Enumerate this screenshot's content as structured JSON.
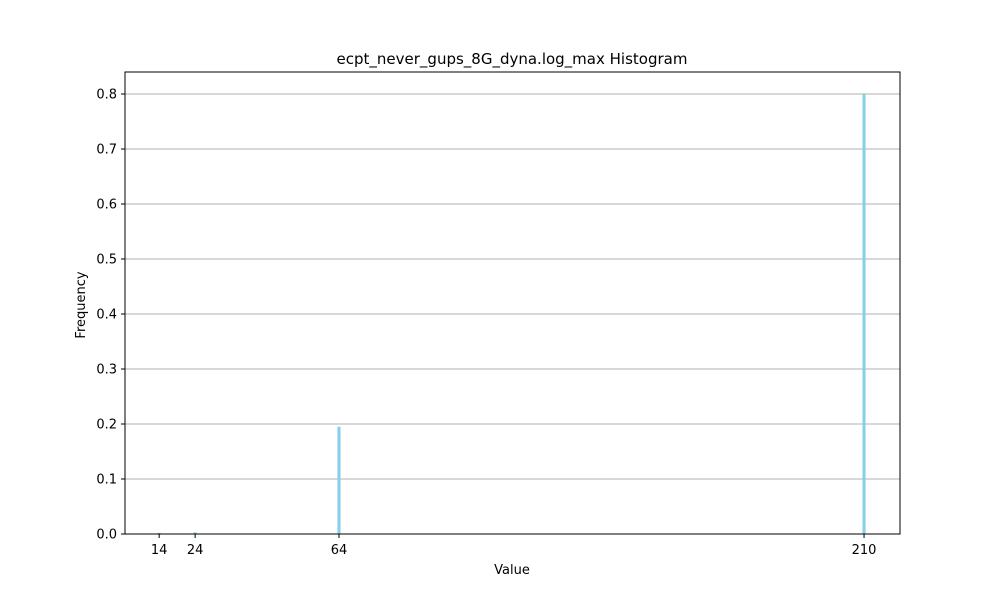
{
  "chart_data": {
    "type": "bar",
    "title": "ecpt_never_gups_8G_dyna.log_max Histogram",
    "xlabel": "Value",
    "ylabel": "Frequency",
    "x_ticks": [
      14,
      24,
      64,
      210
    ],
    "y_ticks": [
      0.0,
      0.1,
      0.2,
      0.3,
      0.4,
      0.5,
      0.6,
      0.7,
      0.8
    ],
    "y_tick_labels": [
      "0.0",
      "0.1",
      "0.2",
      "0.3",
      "0.4",
      "0.5",
      "0.6",
      "0.7",
      "0.8"
    ],
    "xlim": [
      4.5,
      220
    ],
    "ylim": [
      0,
      0.84
    ],
    "grid": "y",
    "bar_width": 1,
    "bar_color": "#87ceeb",
    "bars": [
      {
        "x": 14,
        "value": 0.002
      },
      {
        "x": 24,
        "value": 0.003
      },
      {
        "x": 64,
        "value": 0.195
      },
      {
        "x": 210,
        "value": 0.8
      }
    ]
  }
}
